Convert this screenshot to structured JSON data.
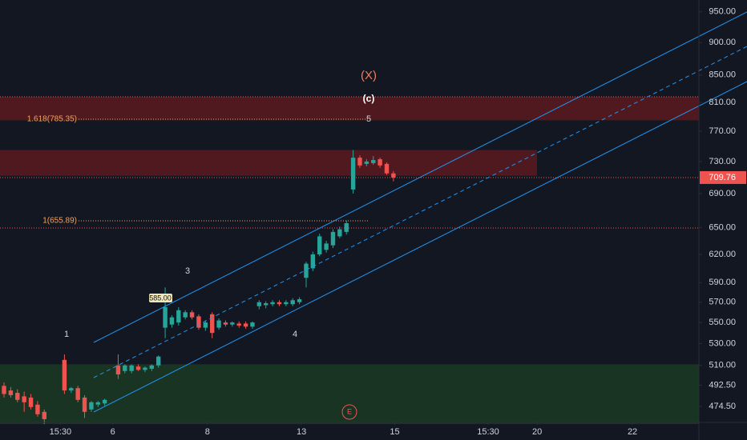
{
  "chart_data": {
    "type": "candlestick",
    "log_scale": true,
    "up_color": "#26a69a",
    "down_color": "#ef5350",
    "channel_color": "#2196f3",
    "x": [
      0,
      1,
      2,
      3,
      4,
      5,
      6,
      9,
      10,
      11,
      12,
      13,
      14,
      15,
      17,
      18,
      19,
      20,
      21,
      22,
      23,
      24,
      25,
      26,
      27,
      28,
      29,
      30,
      31,
      32,
      33,
      34,
      35,
      36,
      37,
      38,
      39,
      40,
      41,
      42,
      43,
      44,
      45,
      46,
      47,
      48,
      49,
      50,
      51,
      52,
      53,
      54,
      55,
      56,
      57,
      58
    ],
    "open": [
      492,
      488,
      486,
      483,
      482,
      476,
      470,
      515,
      488,
      490,
      482,
      472,
      476,
      477,
      510,
      505,
      505,
      509,
      506,
      507,
      510,
      545,
      548,
      550,
      555,
      560,
      556,
      545,
      558,
      545,
      550,
      548,
      549,
      549,
      546,
      566,
      567,
      568,
      570,
      568,
      568,
      570,
      595,
      605,
      620,
      625,
      630,
      640,
      645,
      695,
      735,
      727,
      728,
      733,
      727,
      715
    ],
    "high": [
      495,
      491,
      489,
      487,
      485,
      479,
      472,
      520,
      491,
      492,
      484,
      479,
      479,
      481,
      520,
      511,
      511,
      511,
      509,
      511,
      519,
      585,
      557,
      565,
      562,
      562,
      558,
      552,
      560,
      554,
      552,
      551,
      551,
      551,
      551,
      572,
      571,
      572,
      572,
      572,
      574,
      575,
      612,
      623,
      643,
      635,
      648,
      651,
      658,
      745,
      738,
      733,
      737,
      735,
      729,
      718
    ],
    "low": [
      482,
      482,
      478,
      470,
      472,
      466,
      460,
      485,
      486,
      478,
      465,
      470,
      474,
      475,
      498,
      503,
      503,
      505,
      504,
      505,
      508,
      535,
      545,
      547,
      553,
      553,
      543,
      542,
      535,
      543,
      546,
      546,
      545,
      544,
      544,
      563,
      564,
      566,
      566,
      566,
      566,
      568,
      585,
      602,
      618,
      622,
      627,
      638,
      642,
      690,
      722,
      724,
      726,
      722,
      713,
      705
    ],
    "close": [
      485,
      484,
      480,
      478,
      474,
      468,
      464,
      488,
      490,
      480,
      470,
      478,
      478,
      480,
      502,
      510,
      510,
      506,
      508,
      510,
      518,
      565,
      555,
      562,
      560,
      555,
      545,
      550,
      540,
      552,
      548,
      550,
      547,
      546,
      550,
      570,
      569,
      570,
      568,
      570,
      572,
      573,
      610,
      620,
      640,
      632,
      645,
      648,
      655,
      735,
      725,
      730,
      732,
      725,
      715,
      709.76
    ],
    "xlim": [
      -0.6,
      103.5
    ],
    "xticks": [
      {
        "value": 8.4,
        "label": "15:30"
      },
      {
        "value": 16.2,
        "label": "6"
      },
      {
        "value": 30.3,
        "label": "8"
      },
      {
        "value": 44.3,
        "label": "13"
      },
      {
        "value": 58.2,
        "label": "15"
      },
      {
        "value": 72.1,
        "label": "15:30"
      },
      {
        "value": 79.4,
        "label": "20"
      },
      {
        "value": 93.6,
        "label": "22"
      }
    ],
    "ylim": [
      462,
      970
    ],
    "yticks": [
      {
        "value": 950,
        "label": "950.00"
      },
      {
        "value": 900,
        "label": "900.00"
      },
      {
        "value": 850,
        "label": "850.00"
      },
      {
        "value": 810,
        "label": "810.00"
      },
      {
        "value": 770,
        "label": "770.00"
      },
      {
        "value": 730,
        "label": "730.00"
      },
      {
        "value": 690,
        "label": "690.00"
      },
      {
        "value": 650,
        "label": "650.00"
      },
      {
        "value": 620,
        "label": "620.00"
      },
      {
        "value": 590,
        "label": "590.00"
      },
      {
        "value": 570,
        "label": "570.00"
      },
      {
        "value": 550,
        "label": "550.00"
      },
      {
        "value": 530,
        "label": "530.00"
      },
      {
        "value": 510,
        "label": "510.00"
      },
      {
        "value": 492.5,
        "label": "492.50"
      },
      {
        "value": 474.5,
        "label": "474.50"
      }
    ],
    "zones": [
      {
        "from": 785,
        "to": 818,
        "color": "#5c1a1f"
      },
      {
        "from": 712,
        "to": 745,
        "color": "#5c1a1f"
      },
      {
        "from": 460,
        "to": 511,
        "color": "#1c3a25"
      }
    ],
    "last_price": 709.76,
    "annotations": [
      "(X)",
      "(c)",
      "5",
      "3",
      "1",
      "4",
      "1.618(785.35)",
      "1(655.89)",
      "585.00",
      "E"
    ]
  }
}
